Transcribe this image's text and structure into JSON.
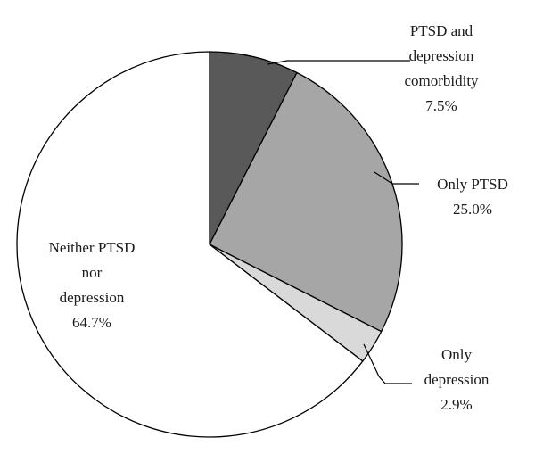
{
  "chart_data": {
    "type": "pie",
    "slices": [
      {
        "lines": [
          "PTSD and",
          "depression",
          "comorbidity",
          "7.5%"
        ],
        "value": 7.5,
        "color": "#595959"
      },
      {
        "lines": [
          "Only PTSD",
          "25.0%"
        ],
        "value": 25.0,
        "color": "#a6a6a6"
      },
      {
        "lines": [
          "Only",
          "depression",
          "2.9%"
        ],
        "value": 2.9,
        "color": "#d9d9d9"
      },
      {
        "lines": [
          "Neither PTSD",
          "nor",
          "depression",
          "64.7%"
        ],
        "value": 64.7,
        "color": "#ffffff"
      }
    ],
    "start_angle_deg": 0,
    "direction": "clockwise"
  }
}
